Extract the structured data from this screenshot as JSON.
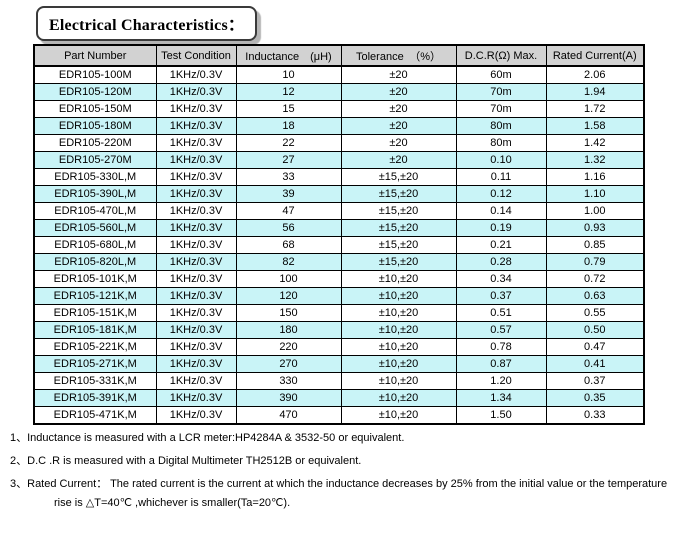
{
  "title": "Electrical Characteristics：",
  "table": {
    "headers": [
      "Part Number",
      "Test Condition",
      "Inductance　(μH)",
      "Tolerance　（%）",
      "D.C.R(Ω) Max.",
      "Rated Current(A)"
    ],
    "rows": [
      [
        "EDR105-100M",
        "1KHz/0.3V",
        "10",
        "±20",
        "60m",
        "2.06"
      ],
      [
        "EDR105-120M",
        "1KHz/0.3V",
        "12",
        "±20",
        "70m",
        "1.94"
      ],
      [
        "EDR105-150M",
        "1KHz/0.3V",
        "15",
        "±20",
        "70m",
        "1.72"
      ],
      [
        "EDR105-180M",
        "1KHz/0.3V",
        "18",
        "±20",
        "80m",
        "1.58"
      ],
      [
        "EDR105-220M",
        "1KHz/0.3V",
        "22",
        "±20",
        "80m",
        "1.42"
      ],
      [
        "EDR105-270M",
        "1KHz/0.3V",
        "27",
        "±20",
        "0.10",
        "1.32"
      ],
      [
        "EDR105-330L,M",
        "1KHz/0.3V",
        "33",
        "±15,±20",
        "0.11",
        "1.16"
      ],
      [
        "EDR105-390L,M",
        "1KHz/0.3V",
        "39",
        "±15,±20",
        "0.12",
        "1.10"
      ],
      [
        "EDR105-470L,M",
        "1KHz/0.3V",
        "47",
        "±15,±20",
        "0.14",
        "1.00"
      ],
      [
        "EDR105-560L,M",
        "1KHz/0.3V",
        "56",
        "±15,±20",
        "0.19",
        "0.93"
      ],
      [
        "EDR105-680L,M",
        "1KHz/0.3V",
        "68",
        "±15,±20",
        "0.21",
        "0.85"
      ],
      [
        "EDR105-820L,M",
        "1KHz/0.3V",
        "82",
        "±15,±20",
        "0.28",
        "0.79"
      ],
      [
        "EDR105-101K,M",
        "1KHz/0.3V",
        "100",
        "±10,±20",
        "0.34",
        "0.72"
      ],
      [
        "EDR105-121K,M",
        "1KHz/0.3V",
        "120",
        "±10,±20",
        "0.37",
        "0.63"
      ],
      [
        "EDR105-151K,M",
        "1KHz/0.3V",
        "150",
        "±10,±20",
        "0.51",
        "0.55"
      ],
      [
        "EDR105-181K,M",
        "1KHz/0.3V",
        "180",
        "±10,±20",
        "0.57",
        "0.50"
      ],
      [
        "EDR105-221K,M",
        "1KHz/0.3V",
        "220",
        "±10,±20",
        "0.78",
        "0.47"
      ],
      [
        "EDR105-271K,M",
        "1KHz/0.3V",
        "270",
        "±10,±20",
        "0.87",
        "0.41"
      ],
      [
        "EDR105-331K,M",
        "1KHz/0.3V",
        "330",
        "±10,±20",
        "1.20",
        "0.37"
      ],
      [
        "EDR105-391K,M",
        "1KHz/0.3V",
        "390",
        "±10,±20",
        "1.34",
        "0.35"
      ],
      [
        "EDR105-471K,M",
        "1KHz/0.3V",
        "470",
        "±10,±20",
        "1.50",
        "0.33"
      ]
    ]
  },
  "notes": [
    {
      "number": "1、",
      "text": "Inductance is measured with a LCR meter:HP4284A & 3532-50 or equivalent."
    },
    {
      "number": "2、",
      "text": "D.C .R is measured with a Digital Multimeter TH2512B or equivalent."
    },
    {
      "number": "3、",
      "text": "Rated Current： The rated current is the current at which the inductance decreases by 25% from the initial value or the temperature",
      "continuation": "rise is △T=40℃ ,whichever is smaller(Ta=20℃)."
    }
  ],
  "colors": {
    "header_bg": "#d2d2d2",
    "row_alt_bg": "#c9f4f7",
    "table_border": "#000000",
    "title_border": "#3a3a3a",
    "title_shadow": "#b5b5b5"
  }
}
